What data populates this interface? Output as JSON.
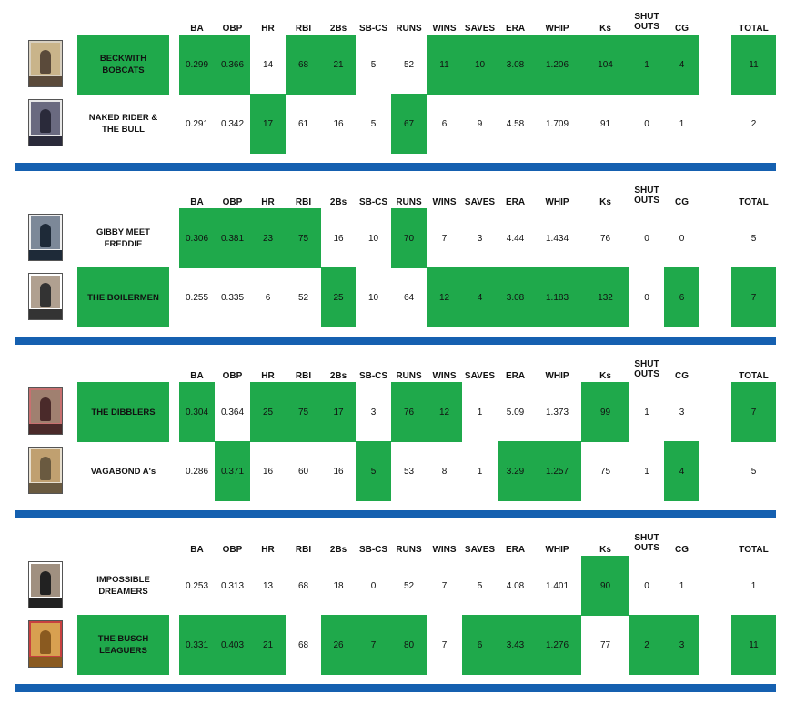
{
  "accent_color": "#1fa94b",
  "separator_color": "#1560b0",
  "headers": {
    "ba": "BA",
    "obp": "OBP",
    "hr": "HR",
    "rbi": "RBI",
    "doubles": "2Bs",
    "sbcs": "SB-CS",
    "runs": "RUNS",
    "wins": "WINS",
    "saves": "SAVES",
    "era": "ERA",
    "whip": "WHIP",
    "ks": "Ks",
    "shut_outs": "SHUT\nOUTS",
    "cg": "CG",
    "total": "TOTAL"
  },
  "matchups": [
    {
      "teams": [
        {
          "name": "BECKWITH BOBCATS",
          "card_icon": "baseball-card-icon",
          "stats": [
            "0.299",
            "0.366",
            "14",
            "68",
            "21",
            "5",
            "52",
            "11",
            "10",
            "3.08",
            "1.206",
            "104",
            "1",
            "4"
          ],
          "wins": [
            true,
            true,
            false,
            true,
            true,
            false,
            false,
            true,
            true,
            true,
            true,
            true,
            true,
            true
          ],
          "name_win": true,
          "total": "11",
          "total_win": true
        },
        {
          "name": "NAKED RIDER & THE BULL",
          "card_icon": "baseball-card-icon",
          "stats": [
            "0.291",
            "0.342",
            "17",
            "61",
            "16",
            "5",
            "67",
            "6",
            "9",
            "4.58",
            "1.709",
            "91",
            "0",
            "1"
          ],
          "wins": [
            false,
            false,
            true,
            false,
            false,
            false,
            true,
            false,
            false,
            false,
            false,
            false,
            false,
            false
          ],
          "name_win": false,
          "total": "2",
          "total_win": false
        }
      ]
    },
    {
      "teams": [
        {
          "name": "GIBBY MEET FREDDIE",
          "card_icon": "baseball-card-icon",
          "stats": [
            "0.306",
            "0.381",
            "23",
            "75",
            "16",
            "10",
            "70",
            "7",
            "3",
            "4.44",
            "1.434",
            "76",
            "0",
            "0"
          ],
          "wins": [
            true,
            true,
            true,
            true,
            false,
            false,
            true,
            false,
            false,
            false,
            false,
            false,
            false,
            false
          ],
          "name_win": false,
          "total": "5",
          "total_win": false
        },
        {
          "name": "THE BOILERMEN",
          "card_icon": "baseball-card-icon",
          "stats": [
            "0.255",
            "0.335",
            "6",
            "52",
            "25",
            "10",
            "64",
            "12",
            "4",
            "3.08",
            "1.183",
            "132",
            "0",
            "6"
          ],
          "wins": [
            false,
            false,
            false,
            false,
            true,
            false,
            false,
            true,
            true,
            true,
            true,
            true,
            false,
            true
          ],
          "name_win": true,
          "total": "7",
          "total_win": true
        }
      ]
    },
    {
      "teams": [
        {
          "name": "THE DIBBLERS",
          "card_icon": "baseball-card-icon",
          "stats": [
            "0.304",
            "0.364",
            "25",
            "75",
            "17",
            "3",
            "76",
            "12",
            "1",
            "5.09",
            "1.373",
            "99",
            "1",
            "3"
          ],
          "wins": [
            true,
            false,
            true,
            true,
            true,
            false,
            true,
            true,
            false,
            false,
            false,
            true,
            false,
            false
          ],
          "name_win": true,
          "total": "7",
          "total_win": true
        },
        {
          "name": "VAGABOND A's",
          "card_icon": "baseball-card-icon",
          "stats": [
            "0.286",
            "0.371",
            "16",
            "60",
            "16",
            "5",
            "53",
            "8",
            "1",
            "3.29",
            "1.257",
            "75",
            "1",
            "4"
          ],
          "wins": [
            false,
            true,
            false,
            false,
            false,
            true,
            false,
            false,
            false,
            true,
            true,
            false,
            false,
            true
          ],
          "name_win": false,
          "total": "5",
          "total_win": false
        }
      ]
    },
    {
      "teams": [
        {
          "name": "IMPOSSIBLE DREAMERS",
          "card_icon": "baseball-card-icon",
          "stats": [
            "0.253",
            "0.313",
            "13",
            "68",
            "18",
            "0",
            "52",
            "7",
            "5",
            "4.08",
            "1.401",
            "90",
            "0",
            "1"
          ],
          "wins": [
            false,
            false,
            false,
            false,
            false,
            false,
            false,
            false,
            false,
            false,
            false,
            true,
            false,
            false
          ],
          "name_win": false,
          "total": "1",
          "total_win": false
        },
        {
          "name": "THE BUSCH LEAGUERS",
          "card_icon": "baseball-card-icon",
          "stats": [
            "0.331",
            "0.403",
            "21",
            "68",
            "26",
            "7",
            "80",
            "7",
            "6",
            "3.43",
            "1.276",
            "77",
            "2",
            "3"
          ],
          "wins": [
            true,
            true,
            true,
            false,
            true,
            true,
            true,
            false,
            true,
            true,
            true,
            false,
            true,
            true
          ],
          "name_win": true,
          "total": "11",
          "total_win": true
        }
      ]
    }
  ]
}
